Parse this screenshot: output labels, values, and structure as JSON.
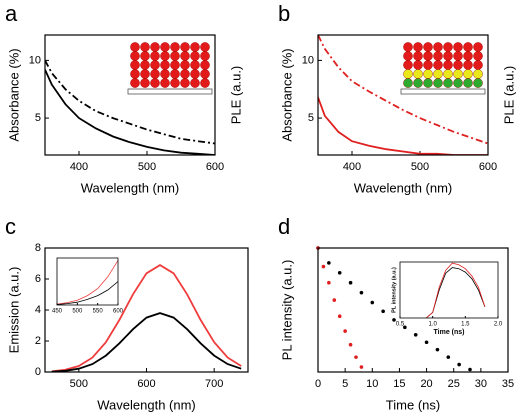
{
  "chart_data": [
    {
      "type": "line",
      "panel_label": "a",
      "x_label": "Wavelength (nm)",
      "y_label": "Absorbance (%)",
      "y2_label": "PLE (a.u.)",
      "x": [
        350,
        360,
        380,
        400,
        425,
        450,
        475,
        500,
        525,
        550,
        575,
        600
      ],
      "series": [
        {
          "color": "#000000",
          "line_style": "solid",
          "values": [
            9.2,
            7.9,
            6.2,
            5.0,
            4.1,
            3.4,
            2.9,
            2.5,
            2.2,
            2.0,
            1.9,
            1.8
          ]
        },
        {
          "color": "#000000",
          "line_style": "dashdot",
          "values": [
            10.0,
            8.9,
            7.5,
            6.5,
            5.6,
            5.0,
            4.5,
            4.0,
            3.6,
            3.2,
            3.0,
            2.8
          ]
        }
      ],
      "xlim": [
        350,
        600
      ],
      "xticks": [
        400,
        500,
        600
      ],
      "ylim": [
        1.8,
        12.2
      ],
      "yticks": [
        5,
        10
      ]
    },
    {
      "type": "line",
      "panel_label": "b",
      "x_label": "Wavelength (nm)",
      "y_label": "Absorbance (%)",
      "y2_label": "PLE (a.u.)",
      "x": [
        350,
        360,
        380,
        400,
        425,
        450,
        475,
        500,
        525,
        550,
        575,
        600
      ],
      "series": [
        {
          "color": "#e02020",
          "line_style": "solid",
          "values": [
            6.8,
            5.2,
            3.8,
            3.0,
            2.6,
            2.3,
            2.1,
            1.9,
            1.9,
            1.8,
            1.8,
            1.8
          ]
        },
        {
          "color": "#e02020",
          "line_style": "dashdot",
          "values": [
            12.2,
            11.0,
            9.4,
            8.2,
            7.3,
            6.5,
            5.7,
            5.0,
            4.4,
            3.8,
            3.3,
            2.8
          ]
        }
      ],
      "xlim": [
        350,
        600
      ],
      "xticks": [
        400,
        500,
        600
      ],
      "ylim": [
        1.8,
        12.2
      ],
      "yticks": [
        5,
        10
      ]
    },
    {
      "type": "line",
      "panel_label": "c",
      "x_label": "Wavelength (nm)",
      "y_label": "Emission (a.u.)",
      "x": [
        460,
        480,
        500,
        520,
        540,
        560,
        580,
        600,
        620,
        640,
        660,
        680,
        700,
        720,
        740
      ],
      "series": [
        {
          "color": "#f03c3c",
          "line_style": "solid",
          "values": [
            0.04,
            0.14,
            0.39,
            0.93,
            1.92,
            3.36,
            5.01,
            6.37,
            6.9,
            6.37,
            5.01,
            3.36,
            1.92,
            0.93,
            0.39
          ]
        },
        {
          "color": "#000000",
          "line_style": "solid",
          "values": [
            0.02,
            0.08,
            0.21,
            0.51,
            1.06,
            1.85,
            2.76,
            3.51,
            3.8,
            3.51,
            2.76,
            1.85,
            1.06,
            0.51,
            0.21
          ]
        }
      ],
      "xlim": [
        450,
        750
      ],
      "xticks": [
        500,
        600,
        700
      ],
      "ylim": [
        0,
        8
      ],
      "yticks": [
        0,
        2,
        4,
        6,
        8
      ]
    },
    {
      "type": "line",
      "x": [
        450,
        475,
        500,
        525,
        550,
        575,
        600
      ],
      "series": [
        {
          "color": "#f03c3c",
          "line_style": "solid",
          "values": [
            0.02,
            0.05,
            0.1,
            0.2,
            0.35,
            0.6,
            0.95
          ]
        },
        {
          "color": "#000000",
          "line_style": "solid",
          "values": [
            0.01,
            0.03,
            0.06,
            0.12,
            0.2,
            0.32,
            0.5
          ]
        }
      ],
      "xlim": [
        450,
        600
      ],
      "xticks": [
        450,
        500,
        550,
        600
      ],
      "ylim": [
        0,
        1
      ]
    },
    {
      "type": "scatter",
      "panel_label": "d",
      "x_label": "Time (ns)",
      "y_label": "PL intensity (a.u.)",
      "series": [
        {
          "color": "#000000",
          "x": [
            0,
            2,
            4,
            6,
            8,
            10,
            12,
            14,
            16,
            18,
            20,
            22,
            24,
            26,
            28
          ],
          "values": [
            1.0,
            0.88,
            0.8,
            0.72,
            0.64,
            0.56,
            0.49,
            0.42,
            0.36,
            0.3,
            0.24,
            0.18,
            0.12,
            0.06,
            0.02
          ]
        },
        {
          "color": "#e02020",
          "x": [
            0,
            1,
            2,
            3,
            4,
            5,
            6,
            7,
            8
          ],
          "values": [
            1.0,
            0.85,
            0.72,
            0.58,
            0.45,
            0.33,
            0.22,
            0.12,
            0.04
          ]
        }
      ],
      "xlim": [
        0,
        35
      ],
      "xticks": [
        0,
        5,
        10,
        15,
        20,
        25,
        30,
        35
      ],
      "ylim": [
        0,
        1
      ]
    },
    {
      "type": "line",
      "x_label": "Time (ns)",
      "y_label": "PL intensity (a.u.)",
      "x": [
        0.9,
        1.0,
        1.1,
        1.2,
        1.3,
        1.4,
        1.5,
        1.6,
        1.7,
        1.8
      ],
      "series": [
        {
          "color": "#000000",
          "line_style": "solid",
          "values": [
            0,
            0.1,
            0.5,
            0.8,
            0.9,
            0.88,
            0.82,
            0.7,
            0.5,
            0.2
          ]
        },
        {
          "color": "#e02020",
          "line_style": "solid",
          "values": [
            0,
            0.1,
            0.55,
            0.85,
            0.98,
            0.95,
            0.88,
            0.75,
            0.55,
            0.2
          ]
        }
      ],
      "xlim": [
        0.5,
        2.0
      ],
      "xticks": [
        0.5,
        {
          "value": 1.0,
          "label": "1.0"
        },
        1.5,
        {
          "value": 2.0,
          "label": "2.0"
        }
      ],
      "ylim": [
        0,
        1
      ]
    }
  ]
}
